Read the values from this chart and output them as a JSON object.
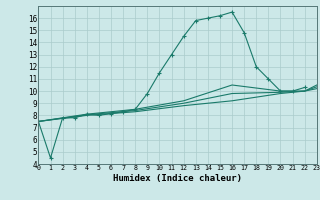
{
  "bg_color": "#cce8e8",
  "grid_color": "#aacccc",
  "line_color": "#1a7a6a",
  "xlabel": "Humidex (Indice chaleur)",
  "xlim": [
    0,
    23
  ],
  "ylim": [
    4,
    17
  ],
  "xticks": [
    0,
    1,
    2,
    3,
    4,
    5,
    6,
    7,
    8,
    9,
    10,
    11,
    12,
    13,
    14,
    15,
    16,
    17,
    18,
    19,
    20,
    21,
    22,
    23
  ],
  "yticks": [
    4,
    5,
    6,
    7,
    8,
    9,
    10,
    11,
    12,
    13,
    14,
    15,
    16
  ],
  "line1_x": [
    0,
    1,
    2,
    3,
    4,
    5,
    6,
    7,
    8,
    9,
    10,
    11,
    12,
    13,
    14,
    15,
    16,
    17,
    18,
    19,
    20,
    21,
    22
  ],
  "line1_y": [
    7.5,
    4.5,
    7.8,
    7.8,
    8.1,
    8.0,
    8.15,
    8.3,
    8.5,
    9.8,
    11.5,
    13.0,
    14.5,
    15.8,
    16.0,
    16.2,
    16.5,
    14.8,
    12.0,
    11.0,
    10.0,
    10.0,
    10.3
  ],
  "line2_x": [
    0,
    4,
    8,
    12,
    16,
    20,
    22,
    23
  ],
  "line2_y": [
    7.5,
    8.1,
    8.5,
    9.2,
    10.5,
    10.0,
    10.0,
    10.5
  ],
  "line3_x": [
    0,
    4,
    8,
    12,
    16,
    20,
    22,
    23
  ],
  "line3_y": [
    7.5,
    8.0,
    8.3,
    8.8,
    9.2,
    9.8,
    10.0,
    10.2
  ],
  "line4_x": [
    0,
    4,
    8,
    12,
    16,
    20,
    22,
    23
  ],
  "line4_y": [
    7.5,
    8.05,
    8.4,
    9.0,
    9.8,
    9.9,
    10.0,
    10.35
  ]
}
